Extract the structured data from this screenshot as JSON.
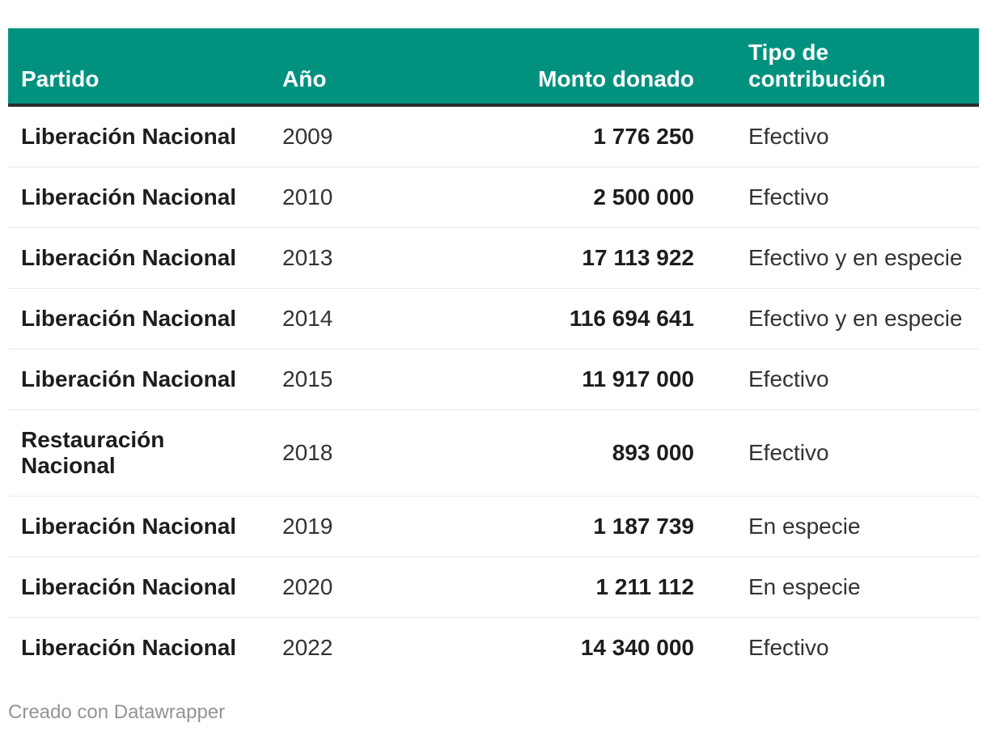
{
  "colors": {
    "header_bg": "#00927F",
    "header_text": "#FFFFFF",
    "header_border": "#2B2B2B",
    "row_divider": "#E8E8E8",
    "text_strong": "#1D1D1D",
    "text_regular": "#333333",
    "footer_text": "#949494"
  },
  "chart_data": {
    "type": "table",
    "columns": [
      {
        "label": "Partido",
        "align": "left"
      },
      {
        "label": "Año",
        "align": "left"
      },
      {
        "label": "Monto donado",
        "align": "right"
      },
      {
        "label": "Tipo de contribución",
        "align": "left"
      }
    ],
    "rows": [
      {
        "partido": "Liberación Nacional",
        "ano": "2009",
        "monto": "1 776 250",
        "tipo": "Efectivo"
      },
      {
        "partido": "Liberación Nacional",
        "ano": "2010",
        "monto": "2 500 000",
        "tipo": "Efectivo"
      },
      {
        "partido": "Liberación Nacional",
        "ano": "2013",
        "monto": "17 113 922",
        "tipo": "Efectivo y en especie"
      },
      {
        "partido": "Liberación Nacional",
        "ano": "2014",
        "monto": "116 694 641",
        "tipo": "Efectivo y en especie"
      },
      {
        "partido": "Liberación Nacional",
        "ano": "2015",
        "monto": "11 917 000",
        "tipo": "Efectivo"
      },
      {
        "partido": "Restauración Nacional",
        "ano": "2018",
        "monto": "893 000",
        "tipo": "Efectivo"
      },
      {
        "partido": "Liberación Nacional",
        "ano": "2019",
        "monto": "1 187 739",
        "tipo": "En especie"
      },
      {
        "partido": "Liberación Nacional",
        "ano": "2020",
        "monto": "1 211 112",
        "tipo": "En especie"
      },
      {
        "partido": "Liberación Nacional",
        "ano": "2022",
        "monto": "14 340 000",
        "tipo": "Efectivo"
      }
    ]
  },
  "footer": {
    "attribution": "Creado con Datawrapper"
  }
}
